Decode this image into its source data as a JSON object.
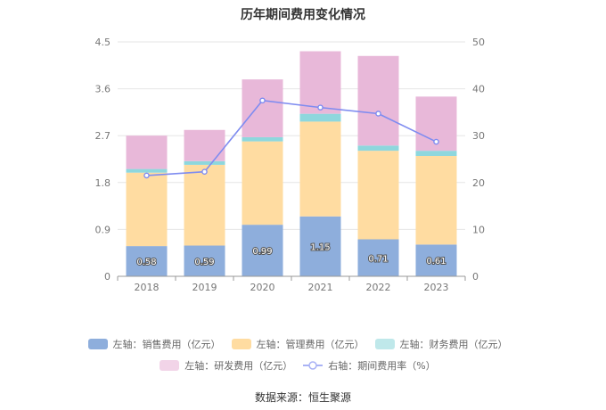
{
  "chart_data": {
    "type": "bar",
    "title": "历年期间费用变化情况",
    "categories": [
      "2018",
      "2019",
      "2020",
      "2021",
      "2022",
      "2023"
    ],
    "left_axis": {
      "ticks": [
        "0",
        "0.9",
        "1.8",
        "2.7",
        "3.6",
        "4.5"
      ],
      "ylim": [
        0,
        4.5
      ]
    },
    "right_axis": {
      "ticks": [
        "0",
        "10",
        "20",
        "30",
        "40",
        "50"
      ],
      "ylim": [
        0,
        50
      ]
    },
    "series": [
      {
        "name": "左轴：销售费用（亿元）",
        "type": "stacked-bar",
        "axis": "left",
        "color": "#8eaedc",
        "values": [
          0.58,
          0.59,
          0.99,
          1.15,
          0.71,
          0.61
        ],
        "labels": [
          "0.58",
          "0.59",
          "0.99",
          "1.15",
          "0.71",
          "0.61"
        ]
      },
      {
        "name": "左轴：管理费用（亿元）",
        "type": "stacked-bar",
        "axis": "left",
        "color": "#ffdca1",
        "values": [
          1.41,
          1.55,
          1.6,
          1.82,
          1.7,
          1.7
        ]
      },
      {
        "name": "左轴：财务费用（亿元）",
        "type": "stacked-bar",
        "axis": "left",
        "color": "#8ed7dd",
        "values": [
          0.07,
          0.07,
          0.08,
          0.15,
          0.1,
          0.1
        ]
      },
      {
        "name": "左轴：研发费用（亿元）",
        "type": "stacked-bar",
        "axis": "left",
        "color": "#e8b8d9",
        "values": [
          0.64,
          0.6,
          1.11,
          1.2,
          1.72,
          1.04
        ]
      },
      {
        "name": "右轴：期间费用率（%）",
        "type": "line",
        "axis": "right",
        "color": "#7f8cf0",
        "values": [
          21.5,
          22.3,
          37.5,
          36.0,
          34.7,
          28.7
        ]
      }
    ],
    "grid": true,
    "legend_position": "bottom"
  },
  "legend": {
    "items": [
      {
        "label": "左轴：销售费用（亿元）",
        "color": "#8eaedc",
        "kind": "bar"
      },
      {
        "label": "左轴：管理费用（亿元）",
        "color": "#ffdca1",
        "kind": "bar"
      },
      {
        "label": "左轴：财务费用（亿元）",
        "color": "#bfe8ea",
        "kind": "bar"
      },
      {
        "label": "左轴：研发费用（亿元）",
        "color": "#f2d4e8",
        "kind": "bar"
      },
      {
        "label": "右轴：期间费用率（%）",
        "color": "#7f8cf0",
        "kind": "line"
      }
    ]
  },
  "source": "数据来源：恒生聚源"
}
